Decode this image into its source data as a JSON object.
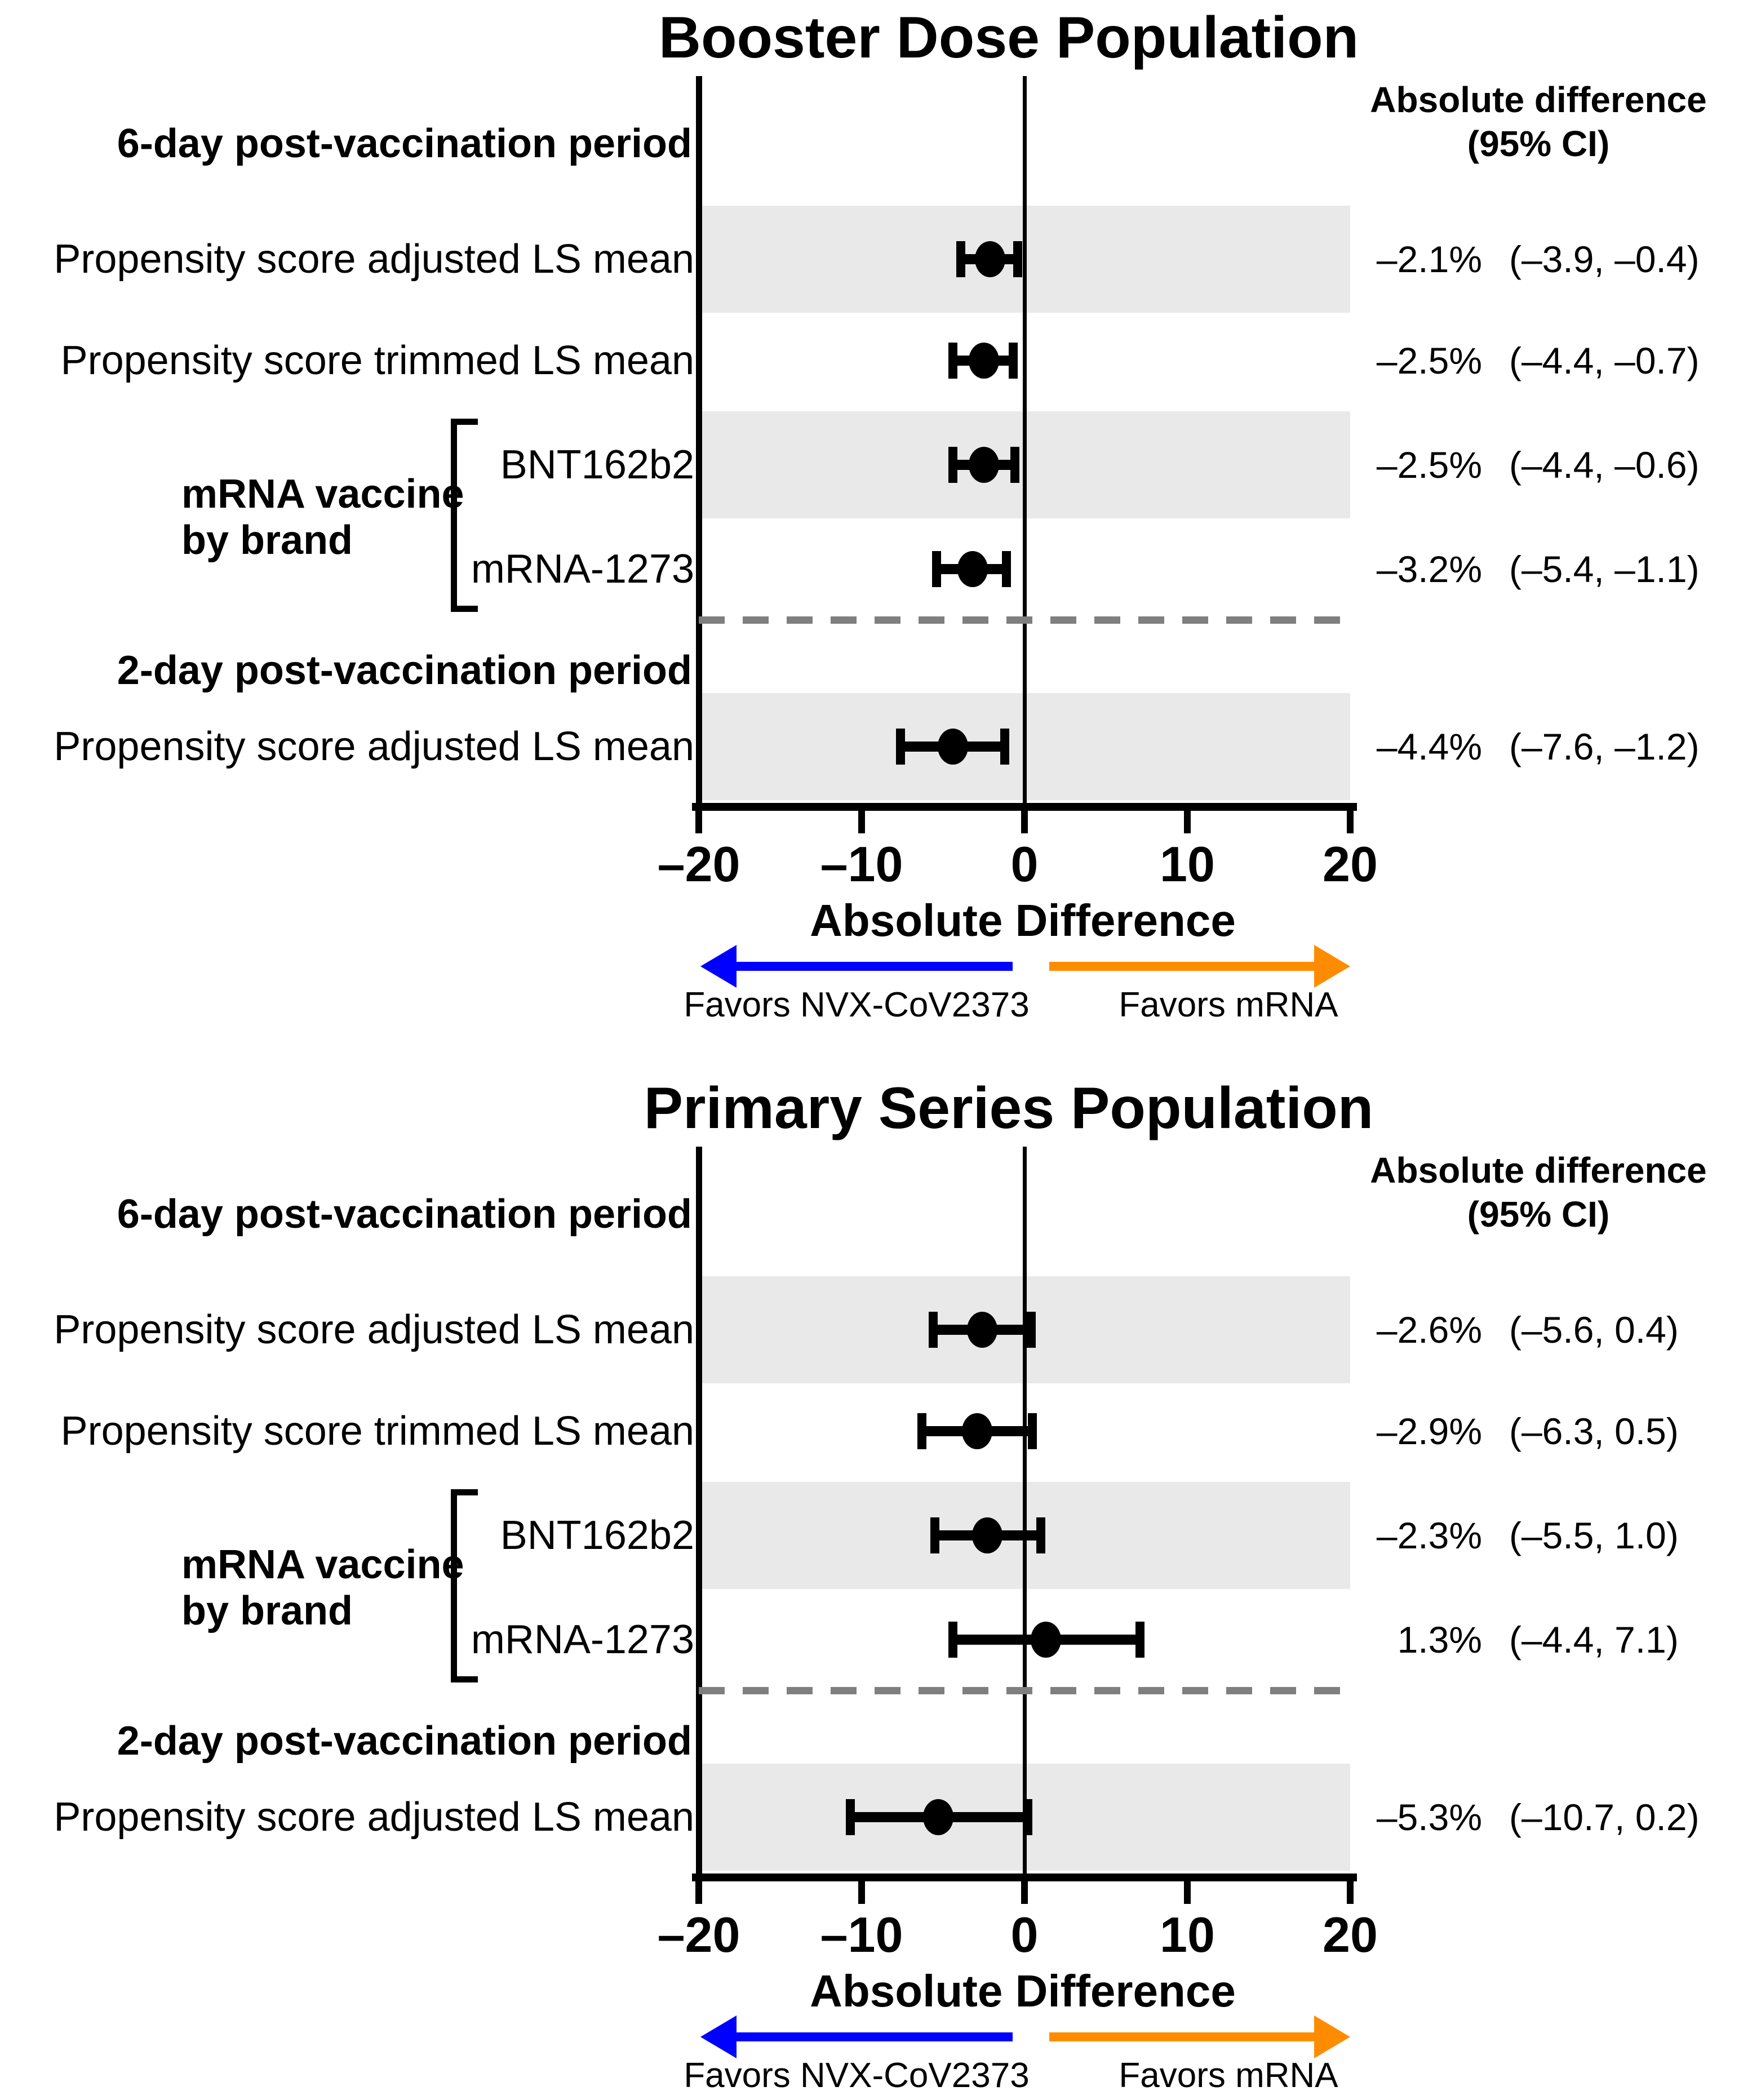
{
  "chart_data": [
    {
      "type": "scatter",
      "title": "Booster Dose Population",
      "xlabel": "Absolute Difference",
      "xlim": [
        -20,
        20
      ],
      "ticks": [
        -20,
        -10,
        0,
        10,
        20
      ],
      "tick_labels": [
        "–20",
        "–10",
        "0",
        "10",
        "20"
      ],
      "right_header": [
        "Absolute difference",
        "(95% CI)"
      ],
      "favors_left": "Favors NVX-CoV2373",
      "favors_right": "Favors mRNA",
      "arrow_left_color": "#0000ff",
      "arrow_right_color": "#ff8c00",
      "band_color": "#e9e9e9",
      "group_label": [
        "mRNA vaccine",
        "by brand"
      ],
      "rows": [
        {
          "kind": "section",
          "label": "6-day post-vaccination period"
        },
        {
          "kind": "data",
          "label": "Propensity score adjusted LS mean",
          "estimate": -2.1,
          "ci_lower": -3.9,
          "ci_upper": -0.4,
          "value_text": "–2.1%",
          "ci_text": "(–3.9, –0.4)",
          "shaded": true,
          "grouped": false
        },
        {
          "kind": "data",
          "label": "Propensity score trimmed LS mean",
          "estimate": -2.5,
          "ci_lower": -4.4,
          "ci_upper": -0.7,
          "value_text": "–2.5%",
          "ci_text": "(–4.4, –0.7)",
          "shaded": false,
          "grouped": false
        },
        {
          "kind": "data",
          "label": "BNT162b2",
          "estimate": -2.5,
          "ci_lower": -4.4,
          "ci_upper": -0.6,
          "value_text": "–2.5%",
          "ci_text": "(–4.4, –0.6)",
          "shaded": true,
          "grouped": true
        },
        {
          "kind": "data",
          "label": "mRNA-1273",
          "estimate": -3.2,
          "ci_lower": -5.4,
          "ci_upper": -1.1,
          "value_text": "–3.2%",
          "ci_text": "(–5.4, –1.1)",
          "shaded": false,
          "grouped": true
        },
        {
          "kind": "divider"
        },
        {
          "kind": "section",
          "label": "2-day post-vaccination period"
        },
        {
          "kind": "data",
          "label": "Propensity score adjusted LS mean",
          "estimate": -4.4,
          "ci_lower": -7.6,
          "ci_upper": -1.2,
          "value_text": "–4.4%",
          "ci_text": "(–7.6, –1.2)",
          "shaded": true,
          "grouped": false
        }
      ]
    },
    {
      "type": "scatter",
      "title": "Primary Series Population",
      "xlabel": "Absolute Difference",
      "xlim": [
        -20,
        20
      ],
      "ticks": [
        -20,
        -10,
        0,
        10,
        20
      ],
      "tick_labels": [
        "–20",
        "–10",
        "0",
        "10",
        "20"
      ],
      "right_header": [
        "Absolute difference",
        "(95% CI)"
      ],
      "favors_left": "Favors NVX-CoV2373",
      "favors_right": "Favors mRNA",
      "arrow_left_color": "#0000ff",
      "arrow_right_color": "#ff8c00",
      "band_color": "#e9e9e9",
      "group_label": [
        "mRNA vaccine",
        "by brand"
      ],
      "rows": [
        {
          "kind": "section",
          "label": "6-day post-vaccination period"
        },
        {
          "kind": "data",
          "label": "Propensity score adjusted LS mean",
          "estimate": -2.6,
          "ci_lower": -5.6,
          "ci_upper": 0.4,
          "value_text": "–2.6%",
          "ci_text": "(–5.6, 0.4)",
          "shaded": true,
          "grouped": false
        },
        {
          "kind": "data",
          "label": "Propensity score trimmed LS mean",
          "estimate": -2.9,
          "ci_lower": -6.3,
          "ci_upper": 0.5,
          "value_text": "–2.9%",
          "ci_text": "(–6.3, 0.5)",
          "shaded": false,
          "grouped": false
        },
        {
          "kind": "data",
          "label": "BNT162b2",
          "estimate": -2.3,
          "ci_lower": -5.5,
          "ci_upper": 1.0,
          "value_text": "–2.3%",
          "ci_text": "(–5.5, 1.0)",
          "shaded": true,
          "grouped": true
        },
        {
          "kind": "data",
          "label": "mRNA-1273",
          "estimate": 1.3,
          "ci_lower": -4.4,
          "ci_upper": 7.1,
          "value_text": "1.3%",
          "ci_text": "(–4.4, 7.1)",
          "shaded": false,
          "grouped": true
        },
        {
          "kind": "divider"
        },
        {
          "kind": "section",
          "label": "2-day post-vaccination period"
        },
        {
          "kind": "data",
          "label": "Propensity score adjusted LS mean",
          "estimate": -5.3,
          "ci_lower": -10.7,
          "ci_upper": 0.2,
          "value_text": "–5.3%",
          "ci_text": "(–10.7, 0.2)",
          "shaded": true,
          "grouped": false
        }
      ]
    }
  ]
}
